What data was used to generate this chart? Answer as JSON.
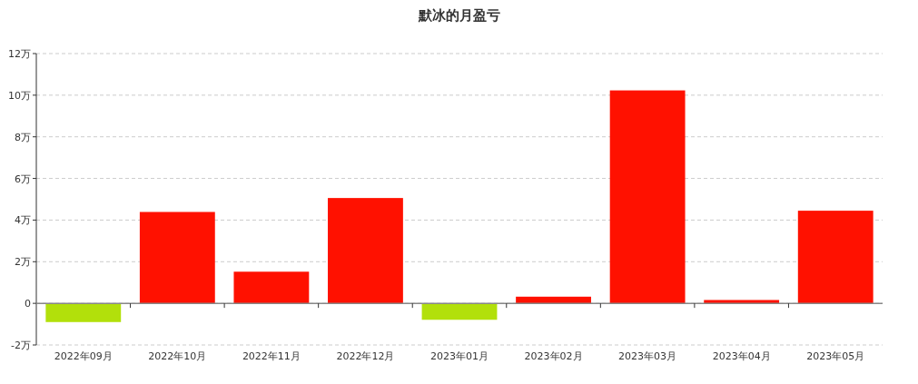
{
  "chart_data": {
    "type": "bar",
    "title": "默冰的月盈亏",
    "categories": [
      "2022年09月",
      "2022年10月",
      "2022年11月",
      "2022年12月",
      "2023年01月",
      "2023年02月",
      "2023年03月",
      "2023年04月",
      "2023年05月"
    ],
    "values": [
      -0.9,
      4.39,
      1.52,
      5.06,
      -0.79,
      0.32,
      10.23,
      0.16,
      4.45
    ],
    "colors": [
      "#b2e00b",
      "#ff1100",
      "#ff1100",
      "#ff1100",
      "#b2e00b",
      "#ff1100",
      "#ff1100",
      "#ff1100",
      "#ff1100"
    ],
    "ylim": [
      -2,
      12
    ],
    "yticks": [
      {
        "value": -2,
        "label": "-2万"
      },
      0,
      {
        "value": 2,
        "label": "2万"
      },
      {
        "value": 4,
        "label": "4万"
      },
      {
        "value": 6,
        "label": "6万"
      },
      {
        "value": 8,
        "label": "8万"
      },
      {
        "value": 10,
        "label": "10万"
      },
      {
        "value": 12,
        "label": "12万"
      }
    ],
    "grid": "y"
  }
}
